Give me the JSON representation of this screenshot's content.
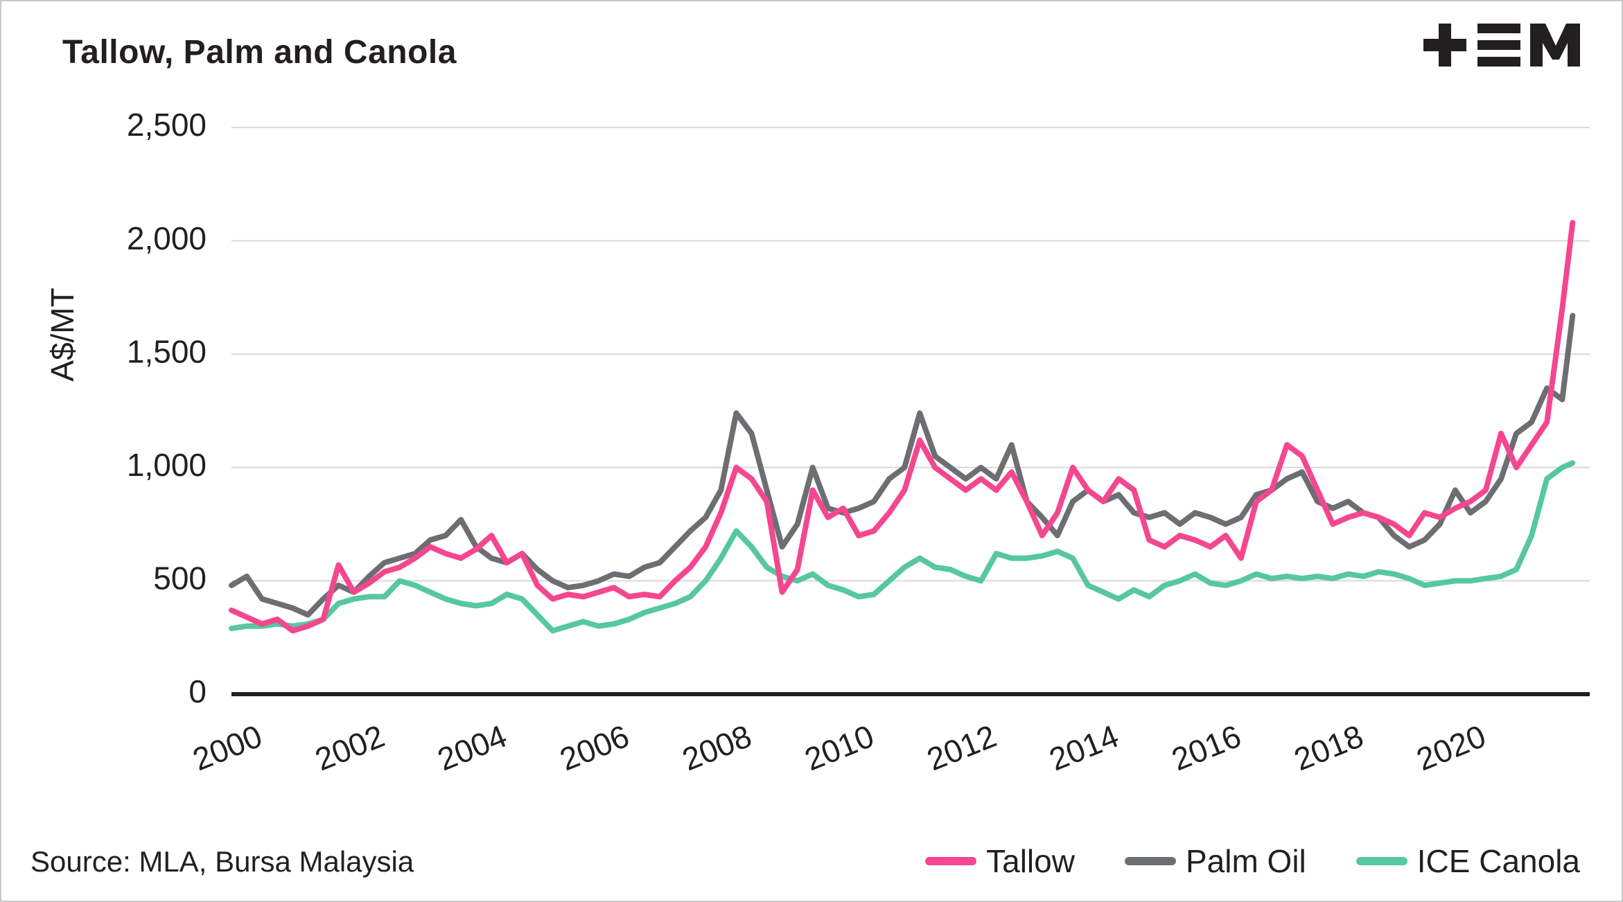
{
  "title": "Tallow, Palm and Canola",
  "logo_name": "MLA logo",
  "source": "Source: MLA, Bursa Malaysia",
  "legend": {
    "tallow": "Tallow",
    "palm": "Palm Oil",
    "canola": "ICE Canola"
  },
  "colors": {
    "tallow": "#F4478F",
    "palm": "#6D6E71",
    "canola": "#57C7A0",
    "grid": "#d9d9d9",
    "axis": "#231f20",
    "text": "#231f20"
  },
  "chart_data": {
    "type": "line",
    "title": "Tallow, Palm and Canola",
    "xlabel": "",
    "ylabel": "A$/MT",
    "ylim": [
      0,
      2500
    ],
    "yticks": [
      0,
      500,
      1000,
      1500,
      2000,
      2500
    ],
    "xlim": [
      2000,
      2022.2
    ],
    "xticks": [
      2000,
      2002,
      2004,
      2006,
      2008,
      2010,
      2012,
      2014,
      2016,
      2018,
      2020
    ],
    "grid": true,
    "legend_position": "bottom-right",
    "x": [
      2000.0,
      2000.25,
      2000.5,
      2000.75,
      2001.0,
      2001.25,
      2001.5,
      2001.75,
      2002.0,
      2002.25,
      2002.5,
      2002.75,
      2003.0,
      2003.25,
      2003.5,
      2003.75,
      2004.0,
      2004.25,
      2004.5,
      2004.75,
      2005.0,
      2005.25,
      2005.5,
      2005.75,
      2006.0,
      2006.25,
      2006.5,
      2006.75,
      2007.0,
      2007.25,
      2007.5,
      2007.75,
      2008.0,
      2008.25,
      2008.5,
      2008.75,
      2009.0,
      2009.25,
      2009.5,
      2009.75,
      2010.0,
      2010.25,
      2010.5,
      2010.75,
      2011.0,
      2011.25,
      2011.5,
      2011.75,
      2012.0,
      2012.25,
      2012.5,
      2012.75,
      2013.0,
      2013.25,
      2013.5,
      2013.75,
      2014.0,
      2014.25,
      2014.5,
      2014.75,
      2015.0,
      2015.25,
      2015.5,
      2015.75,
      2016.0,
      2016.25,
      2016.5,
      2016.75,
      2017.0,
      2017.25,
      2017.5,
      2017.75,
      2018.0,
      2018.25,
      2018.5,
      2018.75,
      2019.0,
      2019.25,
      2019.5,
      2019.75,
      2020.0,
      2020.25,
      2020.5,
      2020.75,
      2021.0,
      2021.25,
      2021.5,
      2021.75,
      2021.92
    ],
    "series": [
      {
        "name": "Tallow",
        "color": "#F4478F",
        "values": [
          370,
          340,
          310,
          330,
          280,
          300,
          330,
          570,
          450,
          490,
          540,
          560,
          600,
          650,
          620,
          600,
          640,
          700,
          580,
          620,
          480,
          420,
          440,
          430,
          450,
          470,
          430,
          440,
          430,
          500,
          560,
          650,
          800,
          1000,
          950,
          850,
          450,
          550,
          900,
          780,
          820,
          700,
          720,
          800,
          900,
          1120,
          1000,
          950,
          900,
          950,
          900,
          980,
          850,
          700,
          800,
          1000,
          900,
          850,
          950,
          900,
          680,
          650,
          700,
          680,
          650,
          700,
          600,
          850,
          900,
          1100,
          1050,
          900,
          750,
          780,
          800,
          780,
          750,
          700,
          800,
          780,
          820,
          850,
          900,
          1150,
          1000,
          1100,
          1200,
          1700,
          2080
        ]
      },
      {
        "name": "Palm Oil",
        "color": "#6D6E71",
        "values": [
          480,
          520,
          420,
          400,
          380,
          350,
          420,
          480,
          450,
          520,
          580,
          600,
          620,
          680,
          700,
          770,
          650,
          600,
          580,
          620,
          550,
          500,
          470,
          480,
          500,
          530,
          520,
          560,
          580,
          650,
          720,
          780,
          900,
          1240,
          1150,
          900,
          650,
          750,
          1000,
          820,
          800,
          820,
          850,
          950,
          1000,
          1240,
          1050,
          1000,
          950,
          1000,
          950,
          1100,
          850,
          780,
          700,
          850,
          900,
          850,
          880,
          800,
          780,
          800,
          750,
          800,
          780,
          750,
          780,
          880,
          900,
          950,
          980,
          850,
          820,
          850,
          800,
          780,
          700,
          650,
          680,
          750,
          900,
          800,
          850,
          950,
          1150,
          1200,
          1350,
          1300,
          1670
        ]
      },
      {
        "name": "ICE Canola",
        "color": "#57C7A0",
        "values": [
          290,
          300,
          300,
          310,
          300,
          310,
          330,
          400,
          420,
          430,
          430,
          500,
          480,
          450,
          420,
          400,
          390,
          400,
          440,
          420,
          350,
          280,
          300,
          320,
          300,
          310,
          330,
          360,
          380,
          400,
          430,
          500,
          600,
          720,
          650,
          560,
          520,
          500,
          530,
          480,
          460,
          430,
          440,
          500,
          560,
          600,
          560,
          550,
          520,
          500,
          620,
          600,
          600,
          610,
          630,
          600,
          480,
          450,
          420,
          460,
          430,
          480,
          500,
          530,
          490,
          480,
          500,
          530,
          510,
          520,
          510,
          520,
          510,
          530,
          520,
          540,
          530,
          510,
          480,
          490,
          500,
          500,
          510,
          520,
          550,
          700,
          950,
          1000,
          1020
        ]
      }
    ]
  }
}
